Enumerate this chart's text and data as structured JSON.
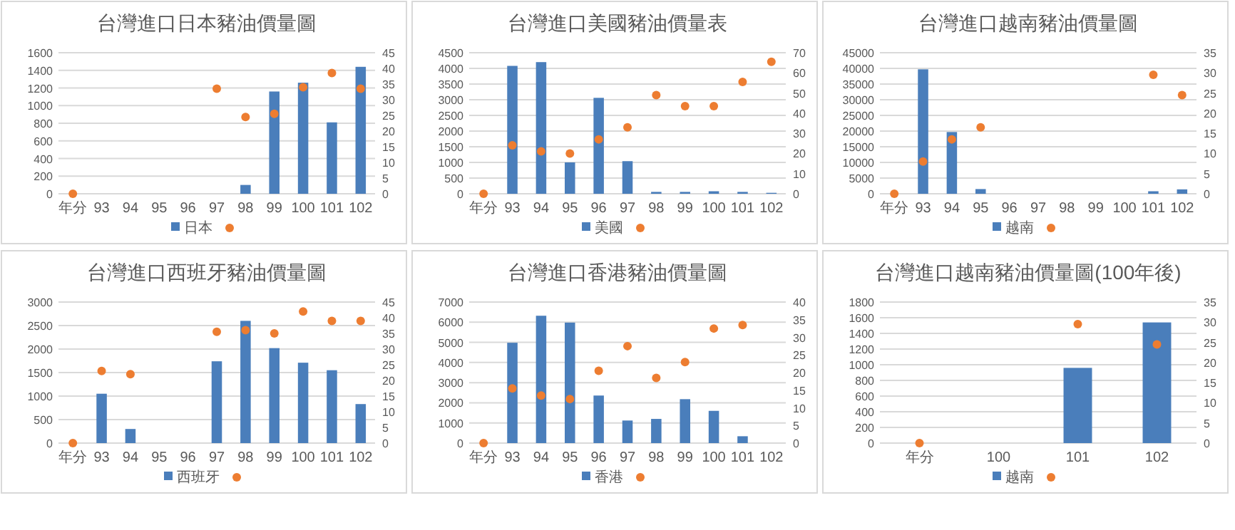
{
  "chart_data": [
    {
      "type": "bar",
      "title": "台灣進口日本豬油價量圖",
      "categories": [
        "年分",
        "93",
        "94",
        "95",
        "96",
        "97",
        "98",
        "99",
        "100",
        "101",
        "102"
      ],
      "ylim": [
        0,
        1600
      ],
      "yticks": [
        0,
        200,
        400,
        600,
        800,
        1000,
        1200,
        1400,
        1600
      ],
      "y2lim": [
        0,
        45
      ],
      "y2ticks": [
        0,
        5,
        10,
        15,
        20,
        25,
        30,
        35,
        40,
        45
      ],
      "grid": "y",
      "legend": "bottom",
      "marker": "circle",
      "series": [
        {
          "name": "日本",
          "color": "#4a7ebb",
          "values": [
            null,
            null,
            null,
            null,
            null,
            null,
            100,
            1160,
            1260,
            810,
            1440
          ]
        },
        {
          "type": "scatter",
          "axis": "y2",
          "color": "#ed7d31",
          "values": [
            0,
            null,
            null,
            null,
            null,
            33.5,
            24.5,
            25.5,
            34,
            38.5,
            33.5
          ]
        }
      ]
    },
    {
      "type": "bar",
      "title": "台灣進口美國豬油價量表",
      "categories": [
        "年分",
        "93",
        "94",
        "95",
        "96",
        "97",
        "98",
        "99",
        "100",
        "101",
        "102"
      ],
      "ylim": [
        0,
        4500
      ],
      "yticks": [
        0,
        500,
        1000,
        1500,
        2000,
        2500,
        3000,
        3500,
        4000,
        4500
      ],
      "y2lim": [
        0,
        70
      ],
      "y2ticks": [
        0,
        10,
        20,
        30,
        40,
        50,
        60,
        70
      ],
      "grid": "y",
      "legend": "bottom",
      "marker": "circle",
      "series": [
        {
          "name": "美國",
          "color": "#4a7ebb",
          "values": [
            null,
            4080,
            4200,
            1000,
            3060,
            1040,
            60,
            60,
            80,
            60,
            30
          ]
        },
        {
          "type": "scatter",
          "axis": "y2",
          "color": "#ed7d31",
          "values": [
            0,
            24,
            21,
            20,
            27,
            33,
            49,
            43.5,
            43.5,
            55.5,
            65.5
          ]
        }
      ]
    },
    {
      "type": "bar",
      "title": "台灣進口越南豬油價量圖",
      "categories": [
        "年分",
        "93",
        "94",
        "95",
        "96",
        "97",
        "98",
        "99",
        "100",
        "101",
        "102"
      ],
      "ylim": [
        0,
        45000
      ],
      "yticks": [
        0,
        5000,
        10000,
        15000,
        20000,
        25000,
        30000,
        35000,
        40000,
        45000
      ],
      "y2lim": [
        0,
        35
      ],
      "y2ticks": [
        0,
        5,
        10,
        15,
        20,
        25,
        30,
        35
      ],
      "grid": "y",
      "legend": "bottom",
      "marker": "circle",
      "series": [
        {
          "name": "越南",
          "color": "#4a7ebb",
          "values": [
            null,
            39700,
            19700,
            1500,
            null,
            null,
            null,
            null,
            null,
            800,
            1400
          ]
        },
        {
          "type": "scatter",
          "axis": "y2",
          "color": "#ed7d31",
          "values": [
            0,
            8,
            13.5,
            16.5,
            null,
            null,
            null,
            null,
            null,
            29.5,
            24.5
          ]
        }
      ]
    },
    {
      "type": "bar",
      "title": "台灣進口西班牙豬油價量圖",
      "categories": [
        "年分",
        "93",
        "94",
        "95",
        "96",
        "97",
        "98",
        "99",
        "100",
        "101",
        "102"
      ],
      "ylim": [
        0,
        3000
      ],
      "yticks": [
        0,
        500,
        1000,
        1500,
        2000,
        2500,
        3000
      ],
      "y2lim": [
        0,
        45
      ],
      "y2ticks": [
        0,
        5,
        10,
        15,
        20,
        25,
        30,
        35,
        40,
        45
      ],
      "grid": "y",
      "legend": "bottom",
      "marker": "circle",
      "series": [
        {
          "name": "西班牙",
          "color": "#4a7ebb",
          "values": [
            null,
            1050,
            300,
            null,
            null,
            1740,
            2600,
            2020,
            1710,
            1550,
            830
          ]
        },
        {
          "type": "scatter",
          "axis": "y2",
          "color": "#ed7d31",
          "values": [
            0,
            23,
            22,
            null,
            null,
            35.5,
            36,
            35,
            42,
            39,
            39
          ]
        }
      ]
    },
    {
      "type": "bar",
      "title": "台灣進口香港豬油價量圖",
      "categories": [
        "年分",
        "93",
        "94",
        "95",
        "96",
        "97",
        "98",
        "99",
        "100",
        "101",
        "102"
      ],
      "ylim": [
        0,
        7000
      ],
      "yticks": [
        0,
        1000,
        2000,
        3000,
        4000,
        5000,
        6000,
        7000
      ],
      "y2lim": [
        0,
        40
      ],
      "y2ticks": [
        0,
        5,
        10,
        15,
        20,
        25,
        30,
        35,
        40
      ],
      "grid": "y",
      "legend": "bottom",
      "marker": "circle",
      "series": [
        {
          "name": "香港",
          "color": "#4a7ebb",
          "values": [
            null,
            4980,
            6320,
            5980,
            2360,
            1120,
            1200,
            2180,
            1600,
            340,
            null
          ]
        },
        {
          "type": "scatter",
          "axis": "y2",
          "color": "#ed7d31",
          "values": [
            0,
            15.5,
            13.5,
            12.5,
            20.5,
            27.5,
            18.5,
            23,
            32.5,
            33.5,
            null
          ]
        }
      ]
    },
    {
      "type": "bar",
      "title": "台灣進口越南豬油價量圖(100年後)",
      "categories": [
        "年分",
        "100",
        "101",
        "102"
      ],
      "ylim": [
        0,
        1800
      ],
      "yticks": [
        0,
        200,
        400,
        600,
        800,
        1000,
        1200,
        1400,
        1600,
        1800
      ],
      "y2lim": [
        0,
        35
      ],
      "y2ticks": [
        0,
        5,
        10,
        15,
        20,
        25,
        30,
        35
      ],
      "grid": "y",
      "legend": "bottom",
      "marker": "circle",
      "series": [
        {
          "name": "越南",
          "color": "#4a7ebb",
          "values": [
            null,
            null,
            960,
            1540
          ]
        },
        {
          "type": "scatter",
          "axis": "y2",
          "color": "#ed7d31",
          "values": [
            0,
            null,
            29.5,
            24.5
          ]
        }
      ]
    }
  ]
}
